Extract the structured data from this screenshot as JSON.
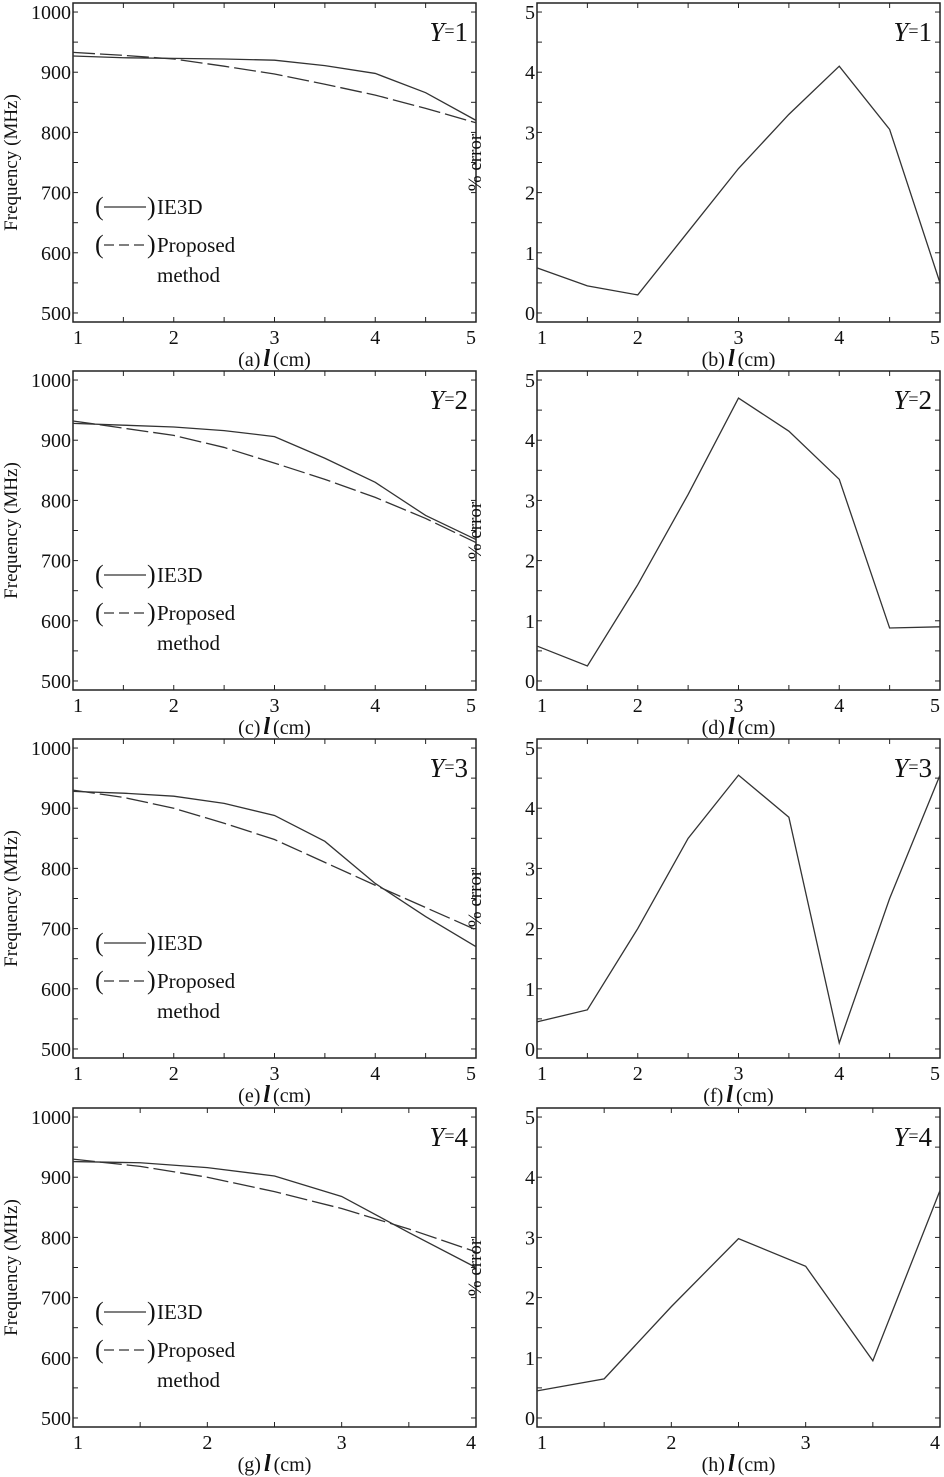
{
  "chart_data": [
    {
      "panel": "a",
      "type": "line",
      "annotation": "Y=1",
      "annotation_var": "Y",
      "annotation_val": "1",
      "caption_prefix": "(a)",
      "caption_var": "l",
      "caption_unit": "(cm)",
      "ylabel": "Frequency (MHz)",
      "xlim": [
        1,
        5
      ],
      "ylim": [
        485,
        1015
      ],
      "xticks": [
        1,
        2,
        3,
        4,
        5
      ],
      "yticks": [
        500,
        600,
        700,
        800,
        900,
        1000
      ],
      "x": [
        1,
        1.5,
        2,
        2.5,
        3,
        3.5,
        4,
        4.5,
        5
      ],
      "series": [
        {
          "name": "IE3D",
          "style": "solid",
          "values": [
            927,
            924,
            923,
            922,
            920,
            911,
            898,
            866,
            820
          ]
        },
        {
          "name": "Proposed method",
          "style": "dashed",
          "values": [
            933,
            928,
            922,
            910,
            897,
            880,
            862,
            840,
            816
          ]
        }
      ],
      "legend": {
        "placement": "lower-left",
        "entries": [
          "IE3D",
          "Proposed",
          "method"
        ]
      }
    },
    {
      "panel": "b",
      "type": "line",
      "annotation": "Y=1",
      "annotation_var": "Y",
      "annotation_val": "1",
      "caption_prefix": "(b)",
      "caption_var": "l",
      "caption_unit": "(cm)",
      "ylabel": "% error",
      "xlim": [
        1,
        5
      ],
      "ylim": [
        -0.15,
        5.15
      ],
      "xticks": [
        1,
        2,
        3,
        4,
        5
      ],
      "yticks": [
        0,
        1,
        2,
        3,
        4,
        5
      ],
      "x": [
        1,
        1.5,
        2,
        2.5,
        3,
        3.5,
        4,
        4.5,
        5
      ],
      "series": [
        {
          "style": "solid",
          "values": [
            0.75,
            0.45,
            0.3,
            1.35,
            2.4,
            3.3,
            4.1,
            3.05,
            0.5
          ]
        }
      ]
    },
    {
      "panel": "c",
      "type": "line",
      "annotation": "Y=2",
      "annotation_var": "Y",
      "annotation_val": "2",
      "caption_prefix": "(c)",
      "caption_var": "l",
      "caption_unit": "(cm)",
      "ylabel": "Frequency (MHz)",
      "xlim": [
        1,
        5
      ],
      "ylim": [
        485,
        1015
      ],
      "xticks": [
        1,
        2,
        3,
        4,
        5
      ],
      "yticks": [
        500,
        600,
        700,
        800,
        900,
        1000
      ],
      "x": [
        1,
        1.5,
        2,
        2.5,
        3,
        3.5,
        4,
        4.5,
        5
      ],
      "series": [
        {
          "name": "IE3D",
          "style": "solid",
          "values": [
            928,
            925,
            922,
            916,
            906,
            870,
            830,
            775,
            735
          ]
        },
        {
          "name": "Proposed method",
          "style": "dashed",
          "values": [
            932,
            920,
            908,
            888,
            862,
            835,
            805,
            770,
            730
          ]
        }
      ],
      "legend": {
        "placement": "lower-left",
        "entries": [
          "IE3D",
          "Proposed",
          "method"
        ]
      }
    },
    {
      "panel": "d",
      "type": "line",
      "annotation": "Y=2",
      "annotation_var": "Y",
      "annotation_val": "2",
      "caption_prefix": "(d)",
      "caption_var": "l",
      "caption_unit": "(cm)",
      "ylabel": "% error",
      "xlim": [
        1,
        5
      ],
      "ylim": [
        -0.15,
        5.15
      ],
      "xticks": [
        1,
        2,
        3,
        4,
        5
      ],
      "yticks": [
        0,
        1,
        2,
        3,
        4,
        5
      ],
      "x": [
        1,
        1.5,
        2,
        2.5,
        3,
        3.5,
        4,
        4.5,
        5
      ],
      "series": [
        {
          "style": "solid",
          "values": [
            0.58,
            0.25,
            1.6,
            3.1,
            4.7,
            4.15,
            3.35,
            0.88,
            0.9
          ]
        }
      ]
    },
    {
      "panel": "e",
      "type": "line",
      "annotation": "Y=3",
      "annotation_var": "Y",
      "annotation_val": "3",
      "caption_prefix": "(e)",
      "caption_var": "l",
      "caption_unit": "(cm)",
      "ylabel": "Frequency (MHz)",
      "xlim": [
        1,
        5
      ],
      "ylim": [
        485,
        1015
      ],
      "xticks": [
        1,
        2,
        3,
        4,
        5
      ],
      "yticks": [
        500,
        600,
        700,
        800,
        900,
        1000
      ],
      "x": [
        1,
        1.5,
        2,
        2.5,
        3,
        3.5,
        4,
        4.5,
        5
      ],
      "series": [
        {
          "name": "IE3D",
          "style": "solid",
          "values": [
            928,
            925,
            920,
            908,
            888,
            845,
            775,
            720,
            670
          ]
        },
        {
          "name": "Proposed method",
          "style": "dashed",
          "values": [
            930,
            918,
            900,
            875,
            848,
            810,
            772,
            735,
            698
          ]
        }
      ],
      "legend": {
        "placement": "lower-left",
        "entries": [
          "IE3D",
          "Proposed",
          "method"
        ]
      }
    },
    {
      "panel": "f",
      "type": "line",
      "annotation": "Y=3",
      "annotation_var": "Y",
      "annotation_val": "3",
      "caption_prefix": "(f)",
      "caption_var": "l",
      "caption_unit": "(cm)",
      "ylabel": "% error",
      "xlim": [
        1,
        5
      ],
      "ylim": [
        -0.15,
        5.15
      ],
      "xticks": [
        1,
        2,
        3,
        4,
        5
      ],
      "yticks": [
        0,
        1,
        2,
        3,
        4,
        5
      ],
      "x": [
        1,
        1.5,
        2,
        2.5,
        3,
        3.5,
        4,
        4.5,
        5
      ],
      "series": [
        {
          "style": "solid",
          "values": [
            0.45,
            0.65,
            2.0,
            3.5,
            4.55,
            3.85,
            0.1,
            2.5,
            4.55
          ]
        }
      ]
    },
    {
      "panel": "g",
      "type": "line",
      "annotation": "Y=4",
      "annotation_var": "Y",
      "annotation_val": "4",
      "caption_prefix": "(g)",
      "caption_var": "l",
      "caption_unit": "(cm)",
      "ylabel": "Frequency (MHz)",
      "xlim": [
        1,
        4
      ],
      "ylim": [
        485,
        1015
      ],
      "xticks": [
        1,
        2,
        3,
        4
      ],
      "yticks": [
        500,
        600,
        700,
        800,
        900,
        1000
      ],
      "x": [
        1,
        1.5,
        2,
        2.5,
        3,
        3.5,
        4
      ],
      "series": [
        {
          "name": "IE3D",
          "style": "solid",
          "values": [
            926,
            924,
            916,
            902,
            868,
            808,
            750
          ]
        },
        {
          "name": "Proposed method",
          "style": "dashed",
          "values": [
            930,
            918,
            900,
            876,
            848,
            814,
            776
          ]
        }
      ],
      "legend": {
        "placement": "lower-left",
        "entries": [
          "IE3D",
          "Proposed",
          "method"
        ]
      }
    },
    {
      "panel": "h",
      "type": "line",
      "annotation": "Y=4",
      "annotation_var": "Y",
      "annotation_val": "4",
      "caption_prefix": "(h)",
      "caption_var": "l",
      "caption_unit": "(cm)",
      "ylabel": "% error",
      "xlim": [
        1,
        4
      ],
      "ylim": [
        -0.15,
        5.15
      ],
      "xticks": [
        1,
        2,
        3,
        4
      ],
      "yticks": [
        0,
        1,
        2,
        3,
        4,
        5
      ],
      "x": [
        1,
        1.5,
        2,
        2.5,
        3,
        3.5,
        4
      ],
      "series": [
        {
          "style": "solid",
          "values": [
            0.45,
            0.65,
            1.85,
            2.98,
            2.52,
            0.95,
            3.78
          ]
        }
      ]
    }
  ]
}
